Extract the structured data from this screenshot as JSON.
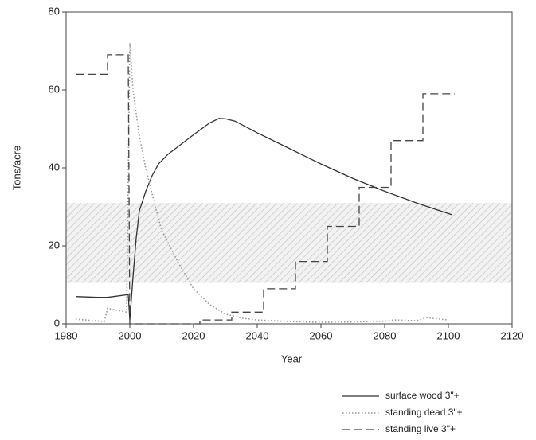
{
  "chart_data": {
    "type": "line",
    "xlabel": "Year",
    "ylabel": "Tons/acre",
    "xlim": [
      1980,
      2120
    ],
    "xticks": [
      1980,
      2000,
      2020,
      2040,
      2060,
      2080,
      2100,
      2120
    ],
    "ylim": [
      0,
      80
    ],
    "yticks": [
      0,
      20,
      40,
      60,
      80
    ],
    "shaded_range": [
      10.5,
      31
    ],
    "series": [
      {
        "name": "surface wood 3\"+",
        "color": "#333333",
        "dash": "solid",
        "x": [
          1983,
          1990,
          1993,
          1999.5,
          2000,
          2001,
          2002,
          2003,
          2005,
          2007,
          2009,
          2012,
          2016,
          2020,
          2025,
          2028,
          2030,
          2033,
          2040,
          2050,
          2060,
          2070,
          2080,
          2090,
          2101
        ],
        "values": [
          7,
          6.8,
          6.8,
          7.5,
          1,
          12,
          22,
          29,
          34,
          38,
          41,
          43.5,
          46,
          48.5,
          51.5,
          52.7,
          52.6,
          52,
          49,
          45,
          41,
          37.3,
          34,
          31,
          28
        ]
      },
      {
        "name": "standing dead 3\"+",
        "color": "#999999",
        "dash": "dotted",
        "x": [
          1983,
          1992,
          1993,
          1999,
          2000,
          2001,
          2003,
          2005,
          2008,
          2010,
          2015,
          2020,
          2025,
          2030,
          2035,
          2040,
          2050,
          2060,
          2070,
          2080,
          2083,
          2090,
          2093,
          2100
        ],
        "values": [
          1.2,
          0.6,
          4,
          3,
          72,
          60,
          48,
          40,
          30,
          24,
          16,
          9,
          5,
          2.5,
          1.5,
          1,
          0.6,
          0.4,
          0.5,
          0.7,
          1,
          0.8,
          1.6,
          1
        ]
      },
      {
        "name": "standing live 3\"+",
        "color": "#444444",
        "dash": "dashed",
        "x": [
          1983,
          1993,
          1993,
          1999.5,
          2000,
          2022,
          2022,
          2032,
          2032,
          2042,
          2042,
          2052,
          2052,
          2062,
          2062,
          2072,
          2072,
          2082,
          2082,
          2092,
          2092,
          2102
        ],
        "values": [
          64,
          64,
          69,
          69,
          0,
          0,
          1,
          1,
          3,
          3,
          9,
          9,
          16,
          16,
          25,
          25,
          35,
          35,
          47,
          47,
          59,
          59
        ]
      }
    ]
  }
}
